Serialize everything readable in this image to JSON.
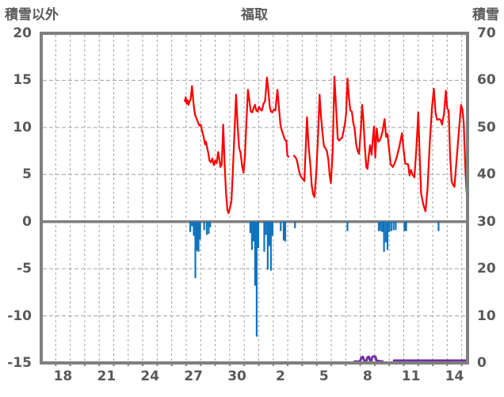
{
  "header": {
    "left_axis_title": "積雪以外",
    "station_title": "福取",
    "right_axis_title": "積雪"
  },
  "colors": {
    "border_gray": "#7F7F7F",
    "grid_gray": "#A3A3A3",
    "text_gray": "#595959",
    "red_line": "#FF0000",
    "blue_bars": "#1073BC",
    "purple_line": "#7030A0"
  },
  "chart_data": {
    "type": "line",
    "title": "福取",
    "left_axis": {
      "label": "積雪以外",
      "min": -15,
      "max": 20,
      "ticks": [
        20,
        15,
        10,
        5,
        0,
        -5,
        -10,
        -15
      ]
    },
    "right_axis": {
      "label": "積雪",
      "min": 0,
      "max": 70,
      "ticks": [
        70,
        60,
        50,
        40,
        30,
        20,
        10,
        0
      ]
    },
    "x_axis": {
      "domain": [
        17,
        46.4
      ],
      "gridline_every_days": 1,
      "tick_labels": [
        "18",
        "21",
        "24",
        "27",
        "30",
        "2",
        "5",
        "8",
        "11",
        "14"
      ],
      "tick_label_positions": [
        18.5,
        21.5,
        24.5,
        27.5,
        30.5,
        33.5,
        36.5,
        39.5,
        42.5,
        45.5
      ]
    },
    "grid": {
      "h_dashed_values": [
        15,
        10,
        5,
        -5,
        -10
      ],
      "zero_line_value": 0
    },
    "series": [
      {
        "name": "red_line",
        "type": "line",
        "axis": "left",
        "color": "#FF0000",
        "width": 2.2,
        "segments": [
          [
            [
              26.9,
              12.8
            ],
            [
              26.97,
              13.2
            ],
            [
              27.03,
              12.5
            ],
            [
              27.1,
              12.9
            ],
            [
              27.16,
              12.4
            ],
            [
              27.22,
              12.7
            ],
            [
              27.3,
              13.0
            ],
            [
              27.4,
              14.4
            ],
            [
              27.48,
              12.9
            ],
            [
              27.55,
              11.9
            ],
            [
              27.62,
              11.3
            ],
            [
              27.7,
              11.0
            ],
            [
              27.8,
              10.6
            ],
            [
              27.9,
              10.2
            ],
            [
              28.0,
              10.3
            ],
            [
              28.1,
              9.6
            ],
            [
              28.2,
              9.0
            ],
            [
              28.3,
              8.2
            ],
            [
              28.36,
              8.5
            ],
            [
              28.44,
              7.9
            ],
            [
              28.52,
              7.3
            ],
            [
              28.6,
              6.5
            ],
            [
              28.7,
              6.3
            ],
            [
              28.8,
              6.7
            ],
            [
              28.9,
              6.0
            ],
            [
              29.0,
              6.5
            ],
            [
              29.1,
              6.2
            ],
            [
              29.2,
              7.4
            ],
            [
              29.27,
              6.8
            ],
            [
              29.36,
              5.8
            ],
            [
              29.45,
              6.1
            ],
            [
              29.55,
              10.3
            ],
            [
              29.65,
              6.0
            ],
            [
              29.75,
              3.0
            ],
            [
              29.84,
              1.2
            ],
            [
              29.92,
              0.9
            ],
            [
              30.02,
              1.5
            ],
            [
              30.12,
              2.2
            ],
            [
              30.22,
              5.5
            ],
            [
              30.33,
              9.5
            ],
            [
              30.44,
              13.5
            ],
            [
              30.55,
              10.0
            ],
            [
              30.65,
              7.8
            ],
            [
              30.75,
              7.3
            ],
            [
              30.85,
              6.0
            ],
            [
              30.95,
              5.2
            ],
            [
              31.05,
              7.0
            ],
            [
              31.15,
              10.5
            ],
            [
              31.26,
              14.0
            ],
            [
              31.35,
              12.9
            ],
            [
              31.45,
              11.7
            ],
            [
              31.55,
              11.6
            ],
            [
              31.65,
              12.1
            ],
            [
              31.74,
              12.4
            ],
            [
              31.83,
              11.8
            ],
            [
              31.92,
              11.7
            ],
            [
              32.02,
              12.2
            ],
            [
              32.12,
              11.9
            ],
            [
              32.22,
              11.8
            ],
            [
              32.33,
              12.5
            ],
            [
              32.44,
              12.8
            ],
            [
              32.57,
              15.3
            ],
            [
              32.67,
              13.8
            ],
            [
              32.76,
              12.2
            ],
            [
              32.85,
              11.7
            ],
            [
              32.94,
              11.6
            ],
            [
              33.04,
              11.9
            ],
            [
              33.15,
              11.8
            ],
            [
              33.29,
              14.0
            ],
            [
              33.4,
              12.0
            ],
            [
              33.5,
              10.3
            ],
            [
              33.6,
              9.6
            ],
            [
              33.7,
              9.2
            ],
            [
              33.8,
              8.7
            ],
            [
              33.9,
              8.6
            ],
            [
              33.98,
              7.0
            ],
            [
              34.05,
              6.9
            ]
          ],
          [
            [
              34.43,
              7.0
            ],
            [
              34.55,
              6.8
            ],
            [
              34.65,
              6.4
            ],
            [
              34.75,
              5.6
            ],
            [
              34.85,
              5.0
            ],
            [
              34.95,
              4.7
            ],
            [
              35.05,
              4.5
            ],
            [
              35.15,
              4.3
            ],
            [
              35.33,
              11.1
            ],
            [
              35.45,
              7.8
            ],
            [
              35.55,
              6.2
            ],
            [
              35.65,
              3.9
            ],
            [
              35.75,
              2.9
            ],
            [
              35.85,
              2.6
            ],
            [
              35.98,
              5.5
            ],
            [
              36.1,
              9.5
            ],
            [
              36.2,
              13.5
            ],
            [
              36.3,
              11.0
            ],
            [
              36.4,
              9.4
            ],
            [
              36.5,
              8.0
            ],
            [
              36.6,
              7.8
            ],
            [
              36.7,
              7.5
            ],
            [
              36.8,
              6.6
            ],
            [
              36.9,
              4.8
            ],
            [
              36.98,
              4.1
            ],
            [
              37.1,
              7.5
            ],
            [
              37.22,
              15.4
            ],
            [
              37.34,
              12.0
            ],
            [
              37.45,
              8.8
            ],
            [
              37.55,
              8.6
            ],
            [
              37.65,
              8.8
            ],
            [
              37.75,
              8.9
            ],
            [
              37.85,
              9.6
            ],
            [
              37.95,
              10.5
            ],
            [
              38.03,
              11.5
            ],
            [
              38.12,
              15.2
            ],
            [
              38.22,
              13.2
            ],
            [
              38.32,
              11.8
            ],
            [
              38.42,
              11.7
            ],
            [
              38.52,
              10.5
            ],
            [
              38.62,
              9.8
            ],
            [
              38.72,
              8.2
            ],
            [
              38.82,
              7.5
            ],
            [
              38.92,
              7.2
            ],
            [
              39.05,
              10.0
            ],
            [
              39.13,
              12.4
            ],
            [
              39.22,
              10.8
            ],
            [
              39.32,
              7.9
            ],
            [
              39.42,
              5.8
            ],
            [
              39.5,
              5.6
            ],
            [
              39.6,
              7.2
            ],
            [
              39.68,
              8.1
            ],
            [
              39.78,
              7.1
            ],
            [
              39.88,
              9.0
            ],
            [
              39.95,
              10.1
            ],
            [
              40.04,
              6.8
            ],
            [
              40.14,
              9.9
            ],
            [
              40.24,
              8.5
            ],
            [
              40.34,
              8.6
            ],
            [
              40.44,
              9.0
            ],
            [
              40.54,
              9.6
            ],
            [
              40.68,
              10.9
            ],
            [
              40.78,
              9.0
            ],
            [
              40.88,
              9.3
            ],
            [
              41.0,
              7.5
            ],
            [
              41.1,
              6.1
            ],
            [
              41.25,
              5.8
            ],
            [
              41.4,
              6.3
            ],
            [
              41.55,
              7.0
            ],
            [
              41.7,
              8.0
            ],
            [
              41.88,
              9.4
            ],
            [
              42.0,
              7.5
            ],
            [
              42.1,
              6.2
            ],
            [
              42.2,
              6.1
            ],
            [
              42.3,
              6.1
            ],
            [
              42.4,
              4.9
            ],
            [
              42.5,
              5.5
            ],
            [
              42.6,
              5.0
            ],
            [
              42.74,
              4.7
            ],
            [
              42.88,
              8.0
            ],
            [
              43.0,
              11.6
            ],
            [
              43.1,
              7.0
            ],
            [
              43.2,
              3.0
            ],
            [
              43.35,
              1.8
            ],
            [
              43.5,
              1.1
            ],
            [
              43.64,
              3.5
            ],
            [
              43.78,
              8.0
            ],
            [
              43.94,
              12.0
            ],
            [
              44.08,
              14.1
            ],
            [
              44.2,
              11.5
            ],
            [
              44.3,
              10.8
            ],
            [
              44.44,
              10.9
            ],
            [
              44.54,
              10.8
            ],
            [
              44.64,
              10.3
            ],
            [
              44.78,
              11.5
            ],
            [
              44.9,
              13.9
            ],
            [
              45.0,
              12.0
            ],
            [
              45.1,
              11.8
            ],
            [
              45.2,
              7.0
            ],
            [
              45.3,
              4.3
            ],
            [
              45.4,
              3.9
            ],
            [
              45.5,
              3.7
            ],
            [
              45.64,
              6.5
            ],
            [
              45.8,
              9.5
            ],
            [
              45.95,
              12.4
            ],
            [
              46.05,
              11.9
            ],
            [
              46.14,
              10.5
            ],
            [
              46.25,
              5.5
            ],
            [
              46.32,
              3.5
            ],
            [
              46.4,
              2.1
            ]
          ]
        ]
      },
      {
        "name": "blue_bars",
        "type": "bar",
        "axis": "left",
        "color": "#1073BC",
        "bar_width_days": 0.12,
        "points": [
          [
            27.28,
            -1.1
          ],
          [
            27.4,
            -0.5
          ],
          [
            27.52,
            -1.5
          ],
          [
            27.63,
            -6.0
          ],
          [
            27.74,
            -3.1
          ],
          [
            27.85,
            -3.2
          ],
          [
            27.96,
            -1.9
          ],
          [
            28.24,
            -0.9
          ],
          [
            28.42,
            -1.4
          ],
          [
            28.55,
            -1.3
          ],
          [
            28.65,
            -0.6
          ],
          [
            31.42,
            -1.2
          ],
          [
            31.53,
            -3.0
          ],
          [
            31.64,
            -2.1
          ],
          [
            31.75,
            -6.8
          ],
          [
            31.86,
            -12.2
          ],
          [
            31.97,
            -2.8
          ],
          [
            32.38,
            -3.2
          ],
          [
            32.5,
            -1.4
          ],
          [
            32.62,
            -5.1
          ],
          [
            32.73,
            -2.6
          ],
          [
            32.84,
            -5.2
          ],
          [
            32.95,
            -1.5
          ],
          [
            33.52,
            -1.0
          ],
          [
            33.72,
            -2.0
          ],
          [
            33.83,
            -2.1
          ],
          [
            34.5,
            -0.7
          ],
          [
            38.12,
            -1.0
          ],
          [
            40.28,
            -1.0
          ],
          [
            40.4,
            -1.0
          ],
          [
            40.52,
            -1.1
          ],
          [
            40.64,
            -3.2
          ],
          [
            40.76,
            -2.2
          ],
          [
            40.88,
            -3.0
          ],
          [
            41.0,
            -1.1
          ],
          [
            41.14,
            -1.0
          ],
          [
            41.3,
            -0.9
          ],
          [
            41.45,
            -0.9
          ],
          [
            42.05,
            -1.0
          ],
          [
            42.17,
            -1.0
          ],
          [
            44.4,
            -1.0
          ]
        ]
      },
      {
        "name": "purple_line",
        "type": "line",
        "axis": "right",
        "color": "#7030A0",
        "width": 3,
        "segments": [
          [
            [
              38.62,
              0.3
            ],
            [
              38.95,
              0.3
            ],
            [
              39.02,
              0.6
            ],
            [
              39.08,
              1.2
            ],
            [
              39.18,
              1.3
            ],
            [
              39.26,
              0.6
            ],
            [
              39.32,
              0.4
            ],
            [
              39.42,
              0.4
            ],
            [
              39.5,
              1.2
            ],
            [
              39.6,
              1.3
            ],
            [
              39.68,
              0.5
            ],
            [
              39.76,
              0.5
            ],
            [
              39.84,
              1.3
            ],
            [
              39.95,
              1.4
            ],
            [
              40.05,
              1.3
            ],
            [
              40.12,
              0.5
            ],
            [
              40.3,
              0.4
            ],
            [
              40.55,
              0.3
            ]
          ],
          [
            [
              41.33,
              0.5
            ],
            [
              46.4,
              0.5
            ]
          ]
        ]
      }
    ]
  }
}
